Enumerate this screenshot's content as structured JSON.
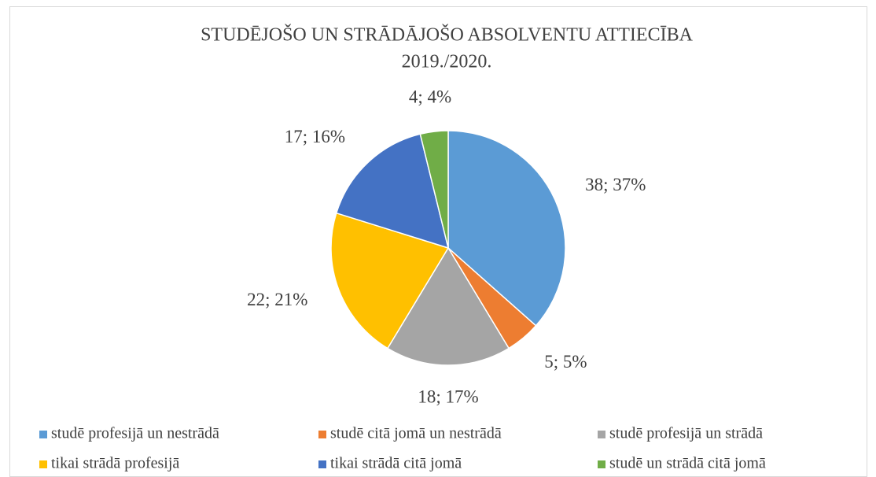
{
  "chart_data": {
    "type": "pie",
    "title": "STUDĒJOŠO UN STRĀDĀJOŠO ABSOLVENTU ATTIECĪBA",
    "subtitle": "2019./2020.",
    "categories": [
      "studē profesijā un nestrādā",
      "studē citā jomā un nestrādā",
      "studē profesijā un strādā",
      "tikai strādā profesijā",
      "tikai strādā citā jomā",
      "studē un strādā citā jomā"
    ],
    "values": [
      38,
      5,
      18,
      22,
      17,
      4
    ],
    "value_labels": [
      "38; 37%",
      "5; 5%",
      "18; 17%",
      "22; 21%",
      "17; 16%",
      "4; 4%"
    ],
    "colors": [
      "#5b9bd5",
      "#ed7d31",
      "#a5a5a5",
      "#ffc000",
      "#4472c4",
      "#70ad47"
    ],
    "legend": "bottom"
  }
}
